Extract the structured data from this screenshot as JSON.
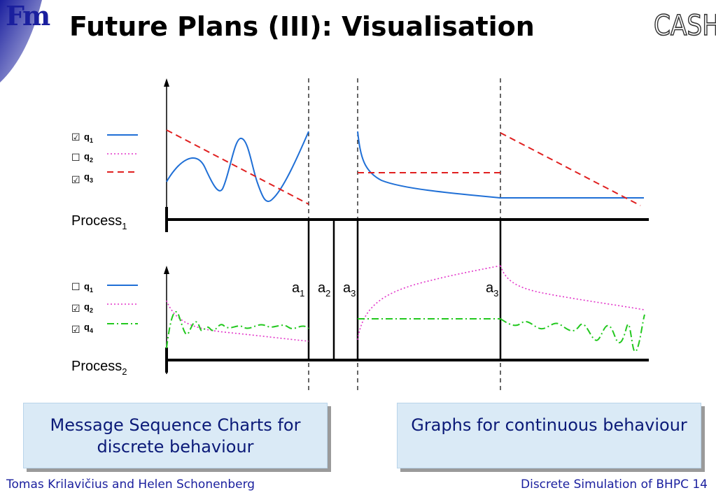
{
  "slide": {
    "title": "Future Plans (III): Visualisation",
    "logo_text": "Fm",
    "cash_logo_text": "CASH"
  },
  "diagram": {
    "process1": {
      "label": "Process",
      "subscript": "1"
    },
    "process2": {
      "label": "Process",
      "subscript": "2"
    },
    "legend1": [
      {
        "check": "☑",
        "var": "q",
        "sub": "1",
        "style": "solid",
        "color": "#1f6fd6"
      },
      {
        "check": "☐",
        "var": "q",
        "sub": "2",
        "style": "dotted",
        "color": "#e234c9"
      },
      {
        "check": "☑",
        "var": "q",
        "sub": "3",
        "style": "dashed",
        "color": "#e02020"
      }
    ],
    "legend2": [
      {
        "check": "☐",
        "var": "q",
        "sub": "1",
        "style": "solid",
        "color": "#1f6fd6"
      },
      {
        "check": "☑",
        "var": "q",
        "sub": "2",
        "style": "dotted",
        "color": "#e234c9"
      },
      {
        "check": "☑",
        "var": "q",
        "sub": "4",
        "style": "dashdot",
        "color": "#22c81e"
      }
    ],
    "actions": [
      {
        "label": "a",
        "sub": "1"
      },
      {
        "label": "a",
        "sub": "2"
      },
      {
        "label": "a",
        "sub": "3"
      },
      {
        "label": "a",
        "sub": "3"
      }
    ]
  },
  "notes": {
    "left": "Message Sequence Charts for discrete behaviour",
    "right": "Graphs for continuous behaviour"
  },
  "footer": {
    "left": "Tomas Krilavičius and Helen Schonenberg",
    "right": "Discrete Simulation of BHPC 14"
  },
  "colors": {
    "title": "#000000",
    "accent_blue": "#1a1f9e",
    "note_bg": "#daeaf6",
    "note_text": "#0b1a78",
    "q1": "#1f6fd6",
    "q2": "#e234c9",
    "q3": "#e02020",
    "q4": "#22c81e"
  }
}
